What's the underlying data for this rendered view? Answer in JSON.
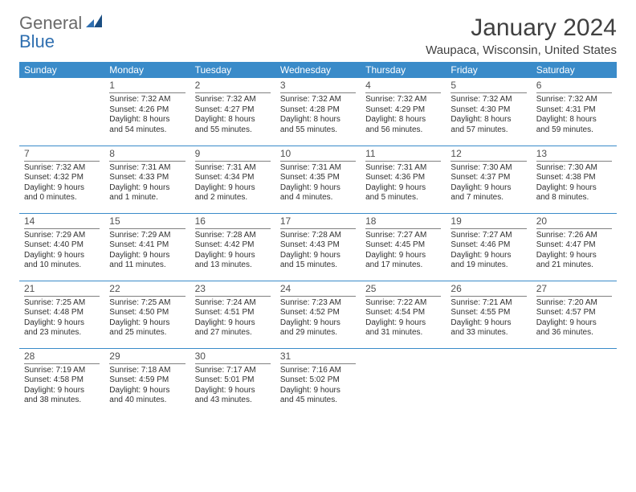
{
  "brand": {
    "part1": "General",
    "part2": "Blue"
  },
  "title": "January 2024",
  "location": "Waupaca, Wisconsin, United States",
  "colors": {
    "header_bg": "#3a8bc9",
    "header_text": "#ffffff",
    "rule": "#3a8bc9",
    "daynum_rule": "#808080",
    "body_text": "#303030",
    "title_text": "#404040",
    "logo_gray": "#6a6a6a",
    "logo_blue": "#2f6fb0",
    "background": "#ffffff"
  },
  "typography": {
    "title_fontsize": 30,
    "location_fontsize": 15,
    "header_fontsize": 12,
    "daynum_fontsize": 12,
    "cell_fontsize": 10,
    "logo_fontsize": 22
  },
  "day_headers": [
    "Sunday",
    "Monday",
    "Tuesday",
    "Wednesday",
    "Thursday",
    "Friday",
    "Saturday"
  ],
  "weeks": [
    [
      null,
      {
        "n": "1",
        "sr": "Sunrise: 7:32 AM",
        "ss": "Sunset: 4:26 PM",
        "d1": "Daylight: 8 hours",
        "d2": "and 54 minutes."
      },
      {
        "n": "2",
        "sr": "Sunrise: 7:32 AM",
        "ss": "Sunset: 4:27 PM",
        "d1": "Daylight: 8 hours",
        "d2": "and 55 minutes."
      },
      {
        "n": "3",
        "sr": "Sunrise: 7:32 AM",
        "ss": "Sunset: 4:28 PM",
        "d1": "Daylight: 8 hours",
        "d2": "and 55 minutes."
      },
      {
        "n": "4",
        "sr": "Sunrise: 7:32 AM",
        "ss": "Sunset: 4:29 PM",
        "d1": "Daylight: 8 hours",
        "d2": "and 56 minutes."
      },
      {
        "n": "5",
        "sr": "Sunrise: 7:32 AM",
        "ss": "Sunset: 4:30 PM",
        "d1": "Daylight: 8 hours",
        "d2": "and 57 minutes."
      },
      {
        "n": "6",
        "sr": "Sunrise: 7:32 AM",
        "ss": "Sunset: 4:31 PM",
        "d1": "Daylight: 8 hours",
        "d2": "and 59 minutes."
      }
    ],
    [
      {
        "n": "7",
        "sr": "Sunrise: 7:32 AM",
        "ss": "Sunset: 4:32 PM",
        "d1": "Daylight: 9 hours",
        "d2": "and 0 minutes."
      },
      {
        "n": "8",
        "sr": "Sunrise: 7:31 AM",
        "ss": "Sunset: 4:33 PM",
        "d1": "Daylight: 9 hours",
        "d2": "and 1 minute."
      },
      {
        "n": "9",
        "sr": "Sunrise: 7:31 AM",
        "ss": "Sunset: 4:34 PM",
        "d1": "Daylight: 9 hours",
        "d2": "and 2 minutes."
      },
      {
        "n": "10",
        "sr": "Sunrise: 7:31 AM",
        "ss": "Sunset: 4:35 PM",
        "d1": "Daylight: 9 hours",
        "d2": "and 4 minutes."
      },
      {
        "n": "11",
        "sr": "Sunrise: 7:31 AM",
        "ss": "Sunset: 4:36 PM",
        "d1": "Daylight: 9 hours",
        "d2": "and 5 minutes."
      },
      {
        "n": "12",
        "sr": "Sunrise: 7:30 AM",
        "ss": "Sunset: 4:37 PM",
        "d1": "Daylight: 9 hours",
        "d2": "and 7 minutes."
      },
      {
        "n": "13",
        "sr": "Sunrise: 7:30 AM",
        "ss": "Sunset: 4:38 PM",
        "d1": "Daylight: 9 hours",
        "d2": "and 8 minutes."
      }
    ],
    [
      {
        "n": "14",
        "sr": "Sunrise: 7:29 AM",
        "ss": "Sunset: 4:40 PM",
        "d1": "Daylight: 9 hours",
        "d2": "and 10 minutes."
      },
      {
        "n": "15",
        "sr": "Sunrise: 7:29 AM",
        "ss": "Sunset: 4:41 PM",
        "d1": "Daylight: 9 hours",
        "d2": "and 11 minutes."
      },
      {
        "n": "16",
        "sr": "Sunrise: 7:28 AM",
        "ss": "Sunset: 4:42 PM",
        "d1": "Daylight: 9 hours",
        "d2": "and 13 minutes."
      },
      {
        "n": "17",
        "sr": "Sunrise: 7:28 AM",
        "ss": "Sunset: 4:43 PM",
        "d1": "Daylight: 9 hours",
        "d2": "and 15 minutes."
      },
      {
        "n": "18",
        "sr": "Sunrise: 7:27 AM",
        "ss": "Sunset: 4:45 PM",
        "d1": "Daylight: 9 hours",
        "d2": "and 17 minutes."
      },
      {
        "n": "19",
        "sr": "Sunrise: 7:27 AM",
        "ss": "Sunset: 4:46 PM",
        "d1": "Daylight: 9 hours",
        "d2": "and 19 minutes."
      },
      {
        "n": "20",
        "sr": "Sunrise: 7:26 AM",
        "ss": "Sunset: 4:47 PM",
        "d1": "Daylight: 9 hours",
        "d2": "and 21 minutes."
      }
    ],
    [
      {
        "n": "21",
        "sr": "Sunrise: 7:25 AM",
        "ss": "Sunset: 4:48 PM",
        "d1": "Daylight: 9 hours",
        "d2": "and 23 minutes."
      },
      {
        "n": "22",
        "sr": "Sunrise: 7:25 AM",
        "ss": "Sunset: 4:50 PM",
        "d1": "Daylight: 9 hours",
        "d2": "and 25 minutes."
      },
      {
        "n": "23",
        "sr": "Sunrise: 7:24 AM",
        "ss": "Sunset: 4:51 PM",
        "d1": "Daylight: 9 hours",
        "d2": "and 27 minutes."
      },
      {
        "n": "24",
        "sr": "Sunrise: 7:23 AM",
        "ss": "Sunset: 4:52 PM",
        "d1": "Daylight: 9 hours",
        "d2": "and 29 minutes."
      },
      {
        "n": "25",
        "sr": "Sunrise: 7:22 AM",
        "ss": "Sunset: 4:54 PM",
        "d1": "Daylight: 9 hours",
        "d2": "and 31 minutes."
      },
      {
        "n": "26",
        "sr": "Sunrise: 7:21 AM",
        "ss": "Sunset: 4:55 PM",
        "d1": "Daylight: 9 hours",
        "d2": "and 33 minutes."
      },
      {
        "n": "27",
        "sr": "Sunrise: 7:20 AM",
        "ss": "Sunset: 4:57 PM",
        "d1": "Daylight: 9 hours",
        "d2": "and 36 minutes."
      }
    ],
    [
      {
        "n": "28",
        "sr": "Sunrise: 7:19 AM",
        "ss": "Sunset: 4:58 PM",
        "d1": "Daylight: 9 hours",
        "d2": "and 38 minutes."
      },
      {
        "n": "29",
        "sr": "Sunrise: 7:18 AM",
        "ss": "Sunset: 4:59 PM",
        "d1": "Daylight: 9 hours",
        "d2": "and 40 minutes."
      },
      {
        "n": "30",
        "sr": "Sunrise: 7:17 AM",
        "ss": "Sunset: 5:01 PM",
        "d1": "Daylight: 9 hours",
        "d2": "and 43 minutes."
      },
      {
        "n": "31",
        "sr": "Sunrise: 7:16 AM",
        "ss": "Sunset: 5:02 PM",
        "d1": "Daylight: 9 hours",
        "d2": "and 45 minutes."
      },
      null,
      null,
      null
    ]
  ]
}
